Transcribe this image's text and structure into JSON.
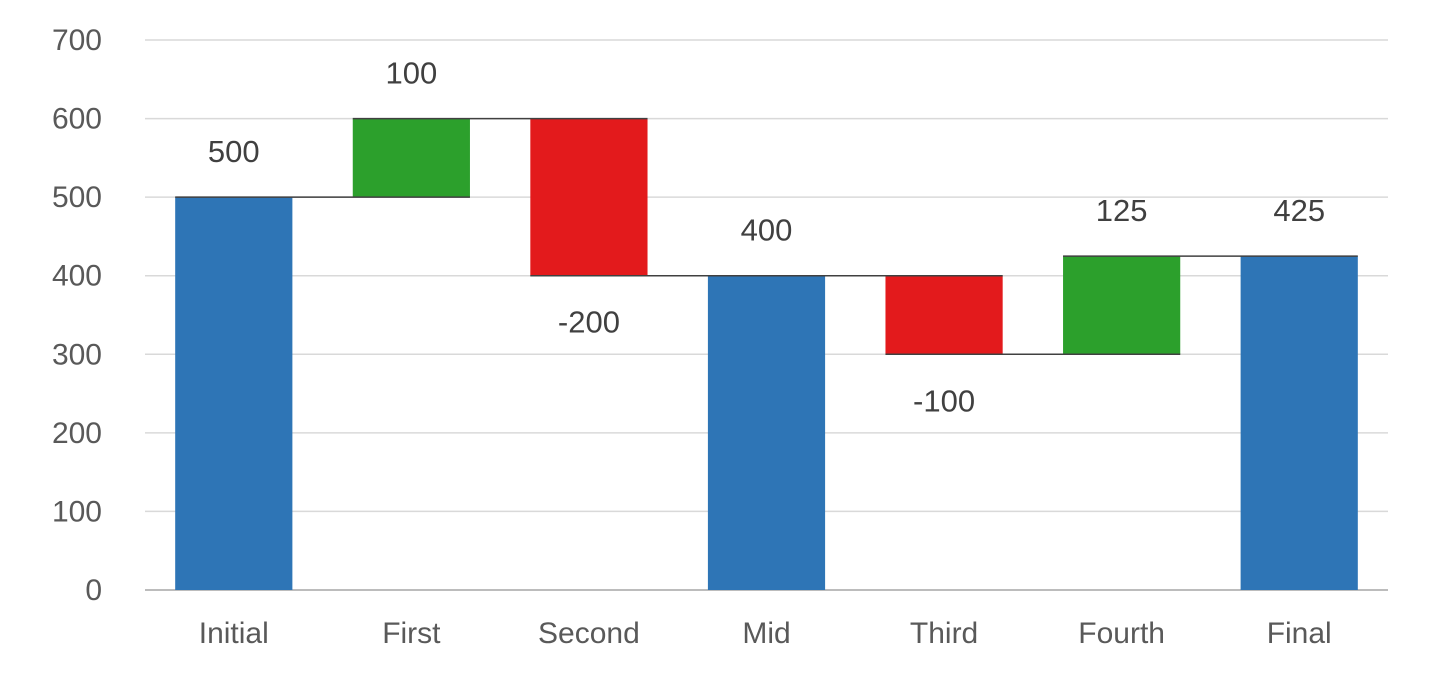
{
  "chart_data": {
    "type": "bar",
    "subtype": "waterfall",
    "title": "",
    "xlabel": "",
    "ylabel": "",
    "ylim": [
      0,
      700
    ],
    "yticks": [
      0,
      100,
      200,
      300,
      400,
      500,
      600,
      700
    ],
    "grid": true,
    "legend": "none",
    "categories": [
      "Initial",
      "First",
      "Second",
      "Mid",
      "Third",
      "Fourth",
      "Final"
    ],
    "values": [
      500,
      100,
      -200,
      400,
      -100,
      125,
      425
    ],
    "data_labels": [
      "500",
      "100",
      "-200",
      "400",
      "-100",
      "125",
      "425"
    ],
    "bar_kind": [
      "total",
      "increase",
      "decrease",
      "total",
      "decrease",
      "increase",
      "total"
    ],
    "colors": {
      "total": "#2E75B6",
      "increase": "#2CA02C",
      "decrease": "#E31A1C"
    }
  }
}
